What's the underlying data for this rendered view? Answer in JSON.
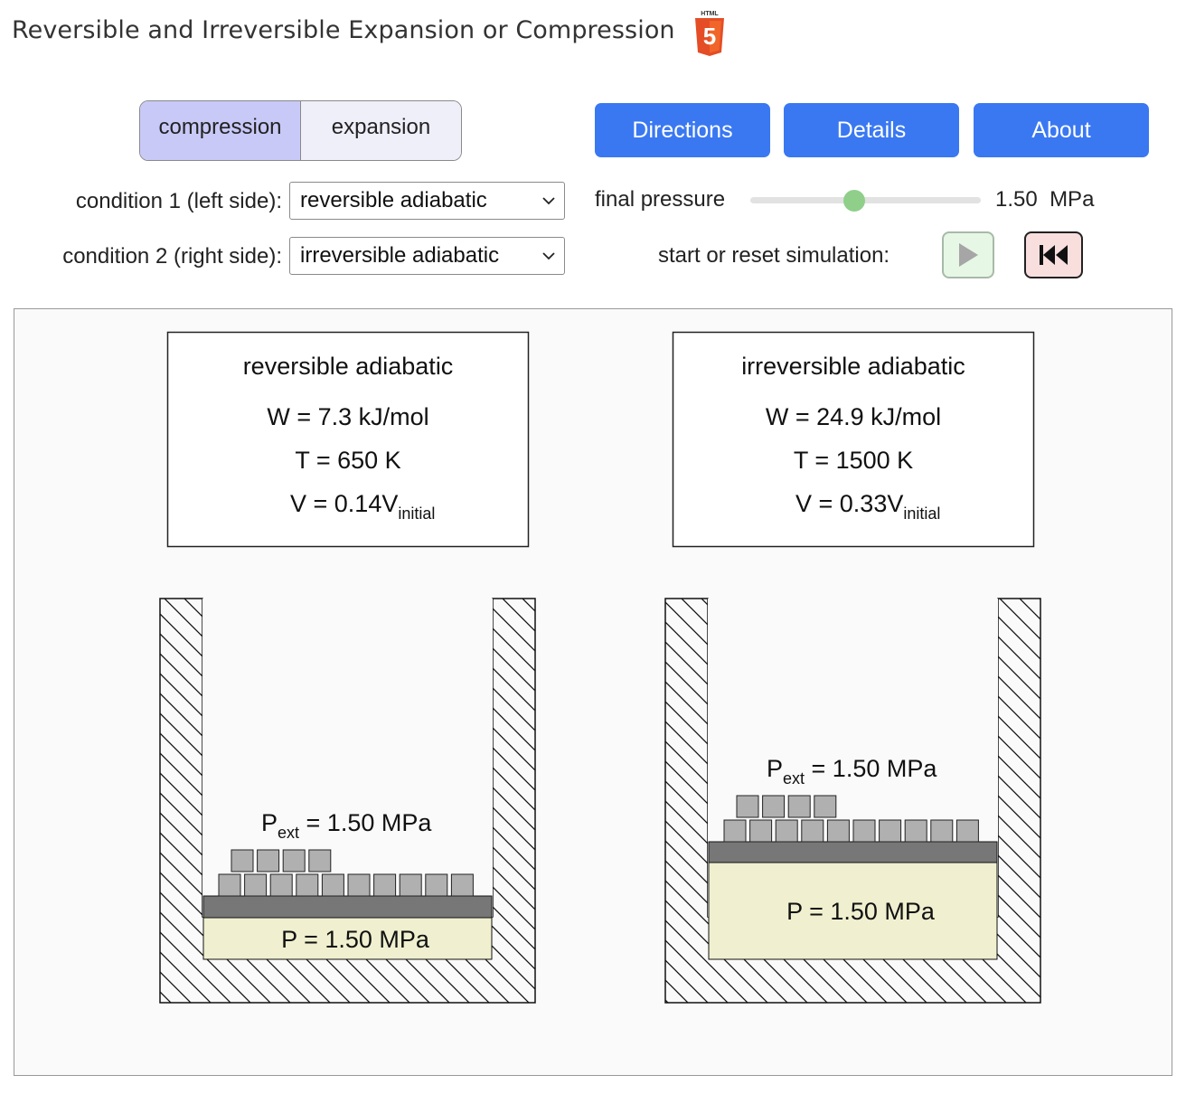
{
  "header": {
    "title": "Reversible and Irreversible Expansion or Compression",
    "logo_label": "HTML",
    "logo_number": "5"
  },
  "mode_toggle": {
    "options": [
      "compression",
      "expansion"
    ],
    "selected": "compression"
  },
  "buttons": {
    "directions": "Directions",
    "details": "Details",
    "about": "About"
  },
  "conditions": {
    "left_label": "condition 1 (left side):",
    "left_value": "reversible adiabatic",
    "right_label": "condition 2 (right side):",
    "right_value": "irreversible adiabatic"
  },
  "final_pressure": {
    "label": "final pressure",
    "value": "1.50",
    "unit": "MPa",
    "slider_fraction": 0.45
  },
  "simulation_control": {
    "label": "start or reset simulation:"
  },
  "left_panel": {
    "title": "reversible adiabatic",
    "work": "W = 7.3 kJ/mol",
    "temperature": "T = 650 K",
    "volume_prefix": "V = 0.14V",
    "volume_subscript": "initial",
    "pext_label": "P",
    "pext_sub": "ext",
    "pext_value": " = 1.50 MPa",
    "gas_pressure": "P = 1.50 MPa"
  },
  "right_panel": {
    "title": "irreversible adiabatic",
    "work": "W = 24.9 kJ/mol",
    "temperature": "T = 1500 K",
    "volume_prefix": "V = 0.33V",
    "volume_subscript": "initial",
    "pext_label": "P",
    "pext_sub": "ext",
    "pext_value": " = 1.50 MPa",
    "gas_pressure": "P = 1.50 MPa"
  },
  "colors": {
    "toggle_active": "#c8c9f7",
    "button_blue": "#3a78f2",
    "gas": "#f0f0d0",
    "piston": "#777777",
    "weight": "#b0b0b0",
    "slider_thumb": "#8fcf8a"
  }
}
